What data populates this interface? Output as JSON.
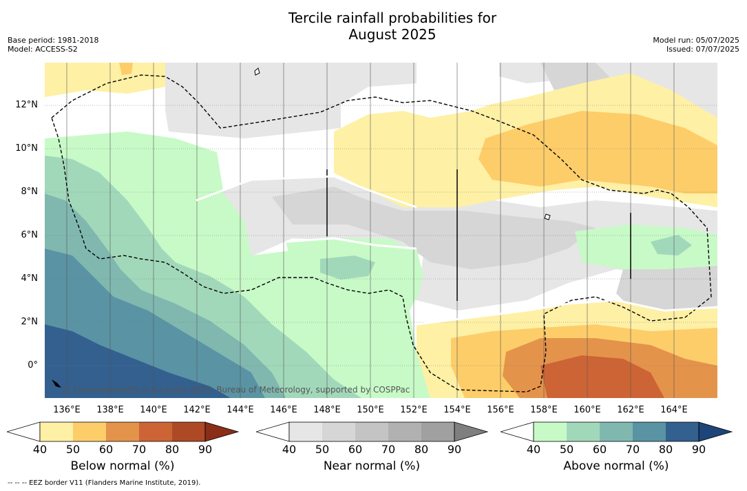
{
  "title": {
    "line1": "Tercile rainfall probabilities for",
    "line2": "August 2025"
  },
  "meta_left": {
    "base_period": "Base period: 1981-2018",
    "model": "Model: ACCESS-S2"
  },
  "meta_right": {
    "model_run": "Model run: 05/07/2025",
    "issued": "Issued: 07/07/2025"
  },
  "map": {
    "lat_labels": [
      "12°N",
      "10°N",
      "8°N",
      "6°N",
      "4°N",
      "2°N",
      "0°"
    ],
    "lon_labels": [
      "136°E",
      "138°E",
      "140°E",
      "142°E",
      "144°E",
      "146°E",
      "148°E",
      "150°E",
      "152°E",
      "154°E",
      "156°E",
      "158°E",
      "160°E",
      "162°E",
      "164°E"
    ],
    "copyright": "© Commonwealth of Australia 2025, Bureau of Meteorology, supported by COSPPac",
    "gridlines": true,
    "boundary_style": "dashed"
  },
  "colorbars": [
    {
      "title": "Below normal (%)",
      "ticks": [
        "40",
        "50",
        "60",
        "70",
        "80",
        "90"
      ],
      "colors": [
        "#fef0a5",
        "#fdcd6a",
        "#e4934b",
        "#cd6435",
        "#ad4a25",
        "#8a2e18"
      ]
    },
    {
      "title": "Near normal (%)",
      "ticks": [
        "40",
        "50",
        "60",
        "70",
        "80",
        "90"
      ],
      "colors": [
        "#e6e6e6",
        "#d6d6d6",
        "#c4c4c4",
        "#b1b1b1",
        "#a0a0a0",
        "#7f7f7f"
      ]
    },
    {
      "title": "Above normal (%)",
      "ticks": [
        "40",
        "50",
        "60",
        "70",
        "80",
        "90"
      ],
      "colors": [
        "#c8fac8",
        "#a2d8ba",
        "#80b8b0",
        "#5a93a4",
        "#33608f",
        "#1d4579"
      ]
    }
  ],
  "footnote": "-- -- -- EEZ border V11 (Flanders Marine Institute, 2019)."
}
